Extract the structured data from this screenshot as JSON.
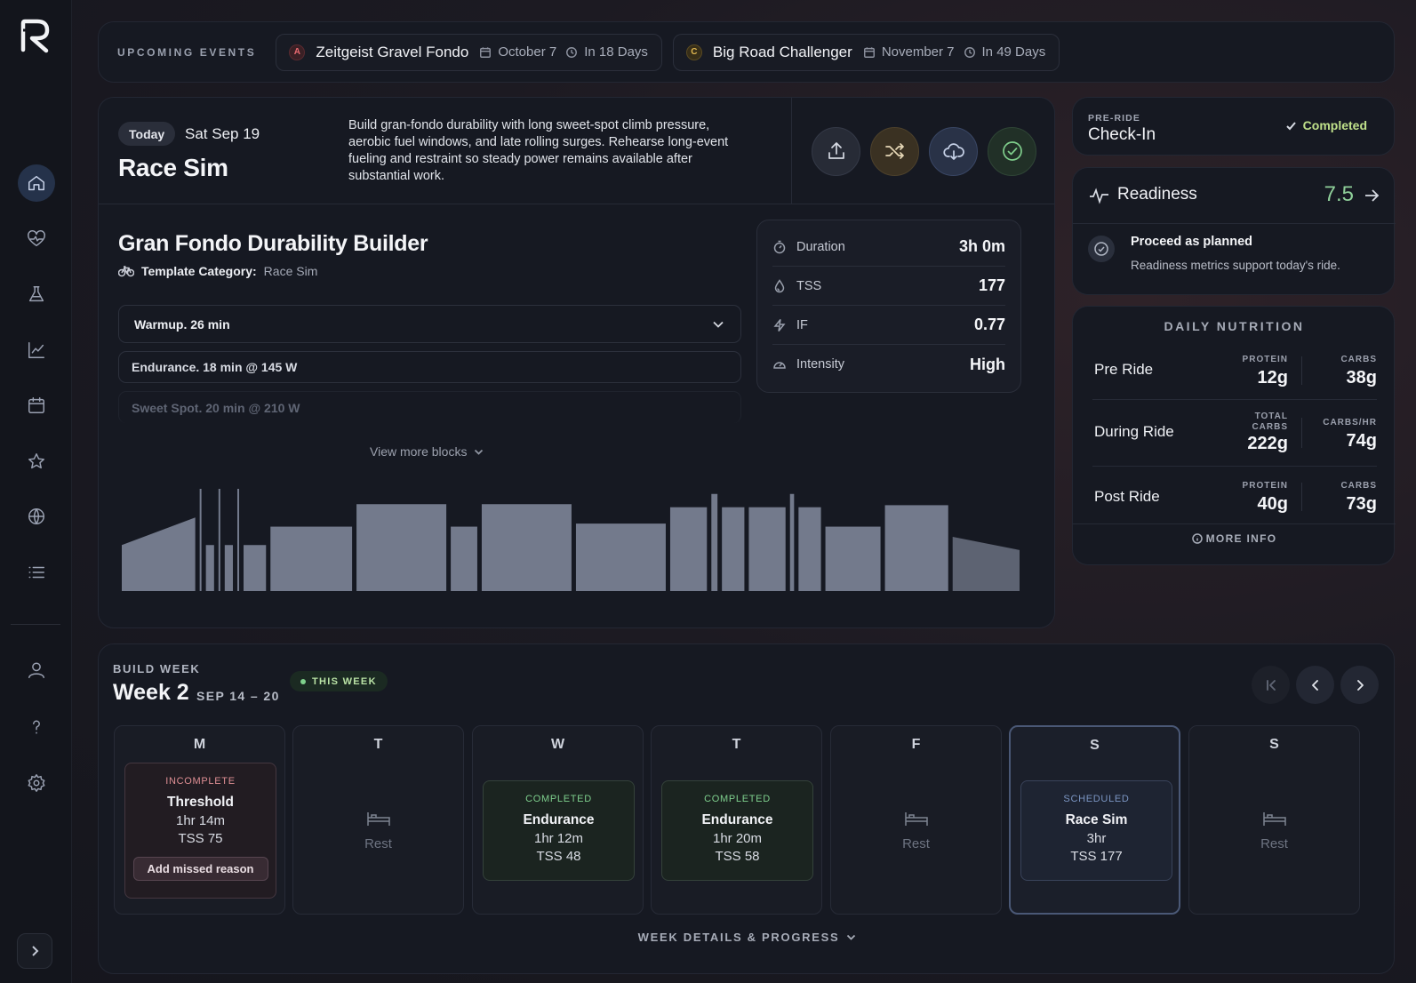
{
  "colors": {
    "bg": "#15161d",
    "card": "#161922",
    "accent_green": "#8fd09a",
    "completed_green": "#bfe08a",
    "incomplete_red": "#df8f94",
    "scheduled_blue": "#7b95c2",
    "bar_fill": "#737a8c"
  },
  "sidebar": {
    "logo": "R",
    "items": [
      {
        "icon": "home-icon",
        "active": true
      },
      {
        "icon": "heart-pulse-icon"
      },
      {
        "icon": "flask-icon"
      },
      {
        "icon": "chart-line-icon"
      },
      {
        "icon": "calendar-icon"
      },
      {
        "icon": "star-icon"
      },
      {
        "icon": "globe-icon"
      },
      {
        "icon": "list-icon"
      },
      {
        "icon": "user-icon"
      },
      {
        "icon": "help-icon"
      },
      {
        "icon": "settings-icon"
      }
    ],
    "expand_icon": "chevron-right-icon"
  },
  "events": {
    "label": "UPCOMING EVENTS",
    "items": [
      {
        "badge": "A",
        "badge_color": "#e0545f",
        "name": "Zeitgeist Gravel Fondo",
        "date": "October 7",
        "countdown": "In 18 Days"
      },
      {
        "badge": "C",
        "badge_color": "#d8b04c",
        "name": "Big Road Challenger",
        "date": "November 7",
        "countdown": "In 49 Days"
      }
    ]
  },
  "workout": {
    "today_label": "Today",
    "date": "Sat Sep 19",
    "title": "Race Sim",
    "description": "Build gran-fondo durability with long sweet-spot climb pressure, aerobic fuel windows, and late rolling surges. Rehearse long-event fueling and restraint so steady power remains available after substantial work.",
    "actions": [
      "upload-icon",
      "shuffle-icon",
      "cloud-download-icon",
      "check-circle-icon"
    ],
    "plan_name": "Gran Fondo Durability Builder",
    "category_label": "Template Category:",
    "category_value": "Race Sim",
    "blocks": [
      {
        "name": "Warmup.",
        "detail": "26 min"
      },
      {
        "name": "Endurance.",
        "detail": "18 min @ 145 W"
      },
      {
        "name": "Sweet Spot.",
        "detail": "20 min @ 210 W"
      }
    ],
    "view_more": "View more blocks",
    "metrics": [
      {
        "icon": "stopwatch-icon",
        "label": "Duration",
        "value": "3h 0m"
      },
      {
        "icon": "drop-icon",
        "label": "TSS",
        "value": "177"
      },
      {
        "icon": "bolt-icon",
        "label": "IF",
        "value": "0.77"
      },
      {
        "icon": "gauge-icon",
        "label": "Intensity",
        "value": "High"
      }
    ],
    "profile": [
      {
        "d": 18.0,
        "p0": 0.45,
        "p1": 0.72
      },
      {
        "d": 0.4,
        "p": 1.0
      },
      {
        "d": 2.0,
        "p": 0.45
      },
      {
        "d": 0.4,
        "p": 1.0
      },
      {
        "d": 2.0,
        "p": 0.45
      },
      {
        "d": 0.4,
        "p": 1.0
      },
      {
        "d": 5.5,
        "p": 0.45
      },
      {
        "d": 20.0,
        "p": 0.63
      },
      {
        "d": 22.0,
        "p": 0.85
      },
      {
        "d": 6.5,
        "p": 0.63
      },
      {
        "d": 22.0,
        "p": 0.85
      },
      {
        "d": 22.0,
        "p": 0.66
      },
      {
        "d": 9.0,
        "p": 0.82
      },
      {
        "d": 1.5,
        "p": 0.95
      },
      {
        "d": 5.5,
        "p": 0.82
      },
      {
        "d": 9.0,
        "p": 0.82
      },
      {
        "d": 1.0,
        "p": 0.95
      },
      {
        "d": 5.5,
        "p": 0.82
      },
      {
        "d": 13.5,
        "p": 0.63
      },
      {
        "d": 15.5,
        "p": 0.84
      },
      {
        "d": 16.5,
        "p0": 0.53,
        "p1": 0.4
      }
    ]
  },
  "checkin": {
    "label": "PRE-RIDE",
    "title": "Check-In",
    "status": "Completed"
  },
  "readiness": {
    "title": "Readiness",
    "score": "7.5",
    "status": "Proceed as planned",
    "note": "Readiness metrics support today's ride."
  },
  "nutrition": {
    "title": "DAILY NUTRITION",
    "rows": [
      {
        "name": "Pre Ride",
        "col1_label": "PROTEIN",
        "col1_value": "12g",
        "col2_label": "CARBS",
        "col2_value": "38g"
      },
      {
        "name": "During Ride",
        "col1_label": "TOTAL CARBS",
        "col1_value": "222g",
        "col2_label": "CARBS/HR",
        "col2_value": "74g"
      },
      {
        "name": "Post Ride",
        "col1_label": "PROTEIN",
        "col1_value": "40g",
        "col2_label": "CARBS",
        "col2_value": "73g"
      }
    ],
    "more_info": "MORE INFO"
  },
  "week": {
    "label": "BUILD WEEK",
    "title": "Week 2",
    "range": "SEP 14 – 20",
    "badge": "THIS WEEK",
    "nav": [
      "skip-back-icon",
      "chevron-left-icon",
      "chevron-right-icon"
    ],
    "days": [
      {
        "letter": "M",
        "status": "INCOMPLETE",
        "name": "Threshold",
        "duration": "1hr 14m",
        "tss": "TSS 75",
        "action": "Add missed reason"
      },
      {
        "letter": "T",
        "rest": "Rest"
      },
      {
        "letter": "W",
        "status": "COMPLETED",
        "name": "Endurance",
        "duration": "1hr 12m",
        "tss": "TSS 48"
      },
      {
        "letter": "T",
        "status": "COMPLETED",
        "name": "Endurance",
        "duration": "1hr 20m",
        "tss": "TSS 58"
      },
      {
        "letter": "F",
        "rest": "Rest"
      },
      {
        "letter": "S",
        "status": "SCHEDULED",
        "name": "Race Sim",
        "duration": "3hr",
        "tss": "TSS 177"
      },
      {
        "letter": "S",
        "rest": "Rest"
      }
    ],
    "details": "WEEK DETAILS & PROGRESS"
  }
}
